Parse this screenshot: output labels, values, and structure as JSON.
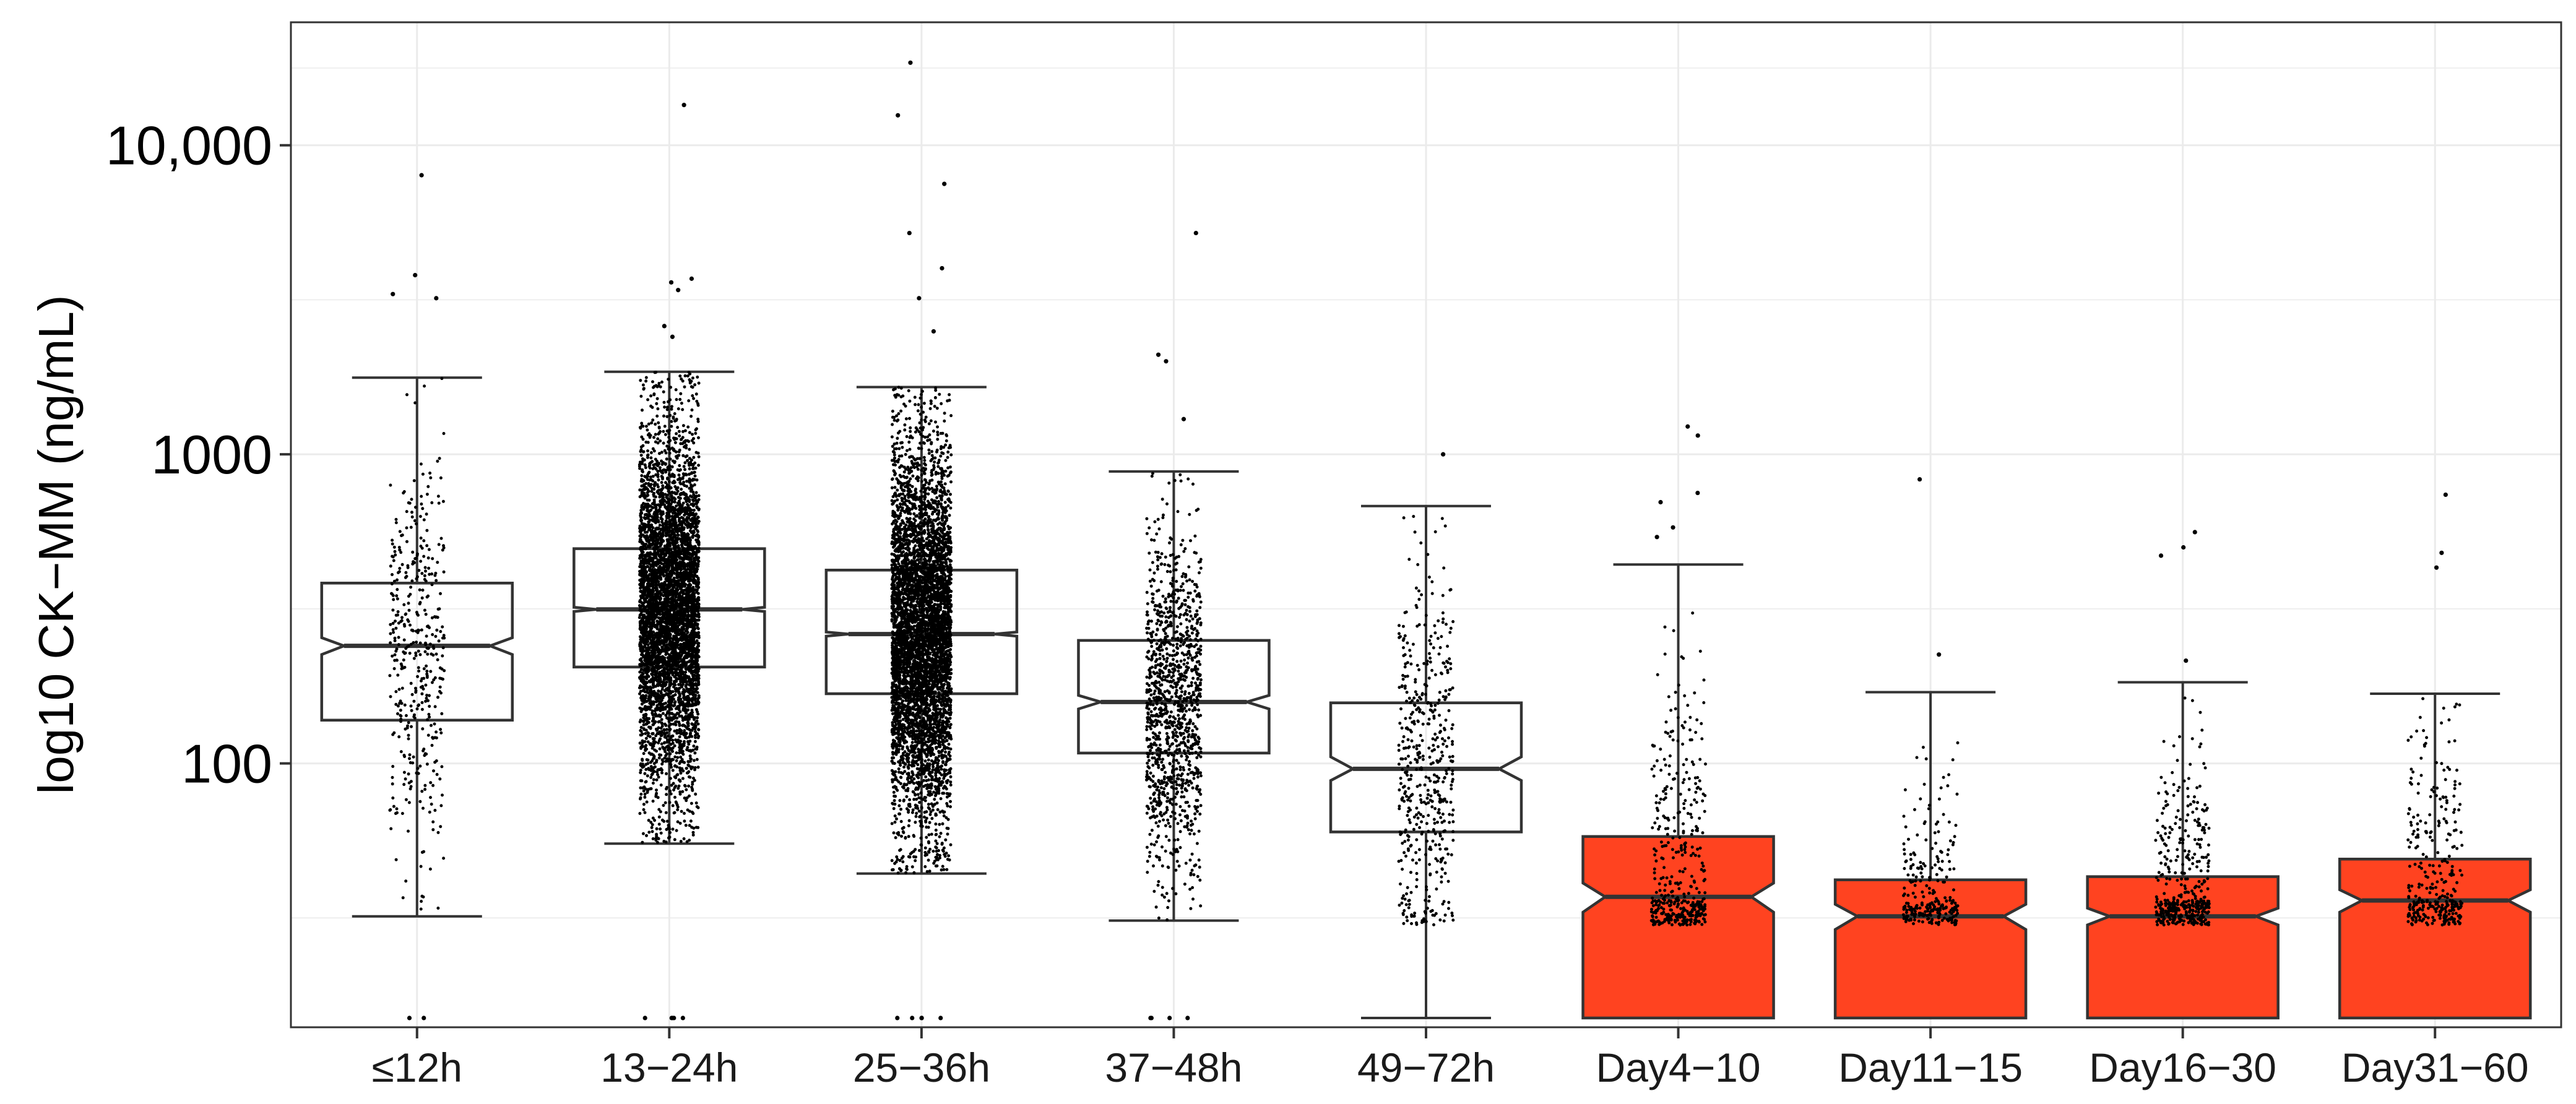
{
  "chart_data": {
    "type": "boxplot",
    "title": "",
    "xlabel": "",
    "ylabel": "log10 CK−MM (ng/mL)",
    "yscale": "log10",
    "ylim": [
      14,
      25000
    ],
    "yticks": [
      100,
      1000,
      10000
    ],
    "ytick_labels": [
      "100",
      "1000",
      "10,000"
    ],
    "grid": true,
    "categories": [
      "≤12h",
      "13−24h",
      "25−36h",
      "37−48h",
      "49−72h",
      "Day4−10",
      "Day11−15",
      "Day16−30",
      "Day31−60"
    ],
    "boxes": [
      {
        "whisker_low": 32,
        "q1": 138,
        "median": 240,
        "q3": 383,
        "whisker_high": 1770,
        "notch_low": 225,
        "notch_high": 255,
        "jitter_count": 420,
        "outliers": [
          3200,
          3300,
          3800,
          8000,
          15,
          15
        ]
      },
      {
        "whisker_low": 55,
        "q1": 205,
        "median": 315,
        "q3": 495,
        "whisker_high": 1850,
        "notch_low": 310,
        "notch_high": 320,
        "jitter_count": 5000,
        "outliers": [
          13500,
          3700,
          3600,
          3400,
          2600,
          2400,
          15,
          15,
          15,
          15,
          15
        ]
      },
      {
        "whisker_low": 44,
        "q1": 168,
        "median": 262,
        "q3": 422,
        "whisker_high": 1650,
        "notch_low": 258,
        "notch_high": 266,
        "jitter_count": 5500,
        "outliers": [
          18500,
          12500,
          7500,
          5200,
          4000,
          3200,
          2500,
          15,
          15,
          15,
          15,
          15
        ]
      },
      {
        "whisker_low": 31,
        "q1": 108,
        "median": 158,
        "q3": 250,
        "whisker_high": 880,
        "notch_low": 150,
        "notch_high": 166,
        "jitter_count": 1200,
        "outliers": [
          5200,
          2100,
          2000,
          1300,
          15,
          15,
          15,
          15
        ]
      },
      {
        "whisker_low": 15,
        "q1": 60,
        "median": 96,
        "q3": 157,
        "whisker_high": 680,
        "notch_low": 88,
        "notch_high": 105,
        "jitter_count": 500,
        "outliers": [
          1000
        ]
      },
      {
        "whisker_low": 15,
        "q1": 15,
        "median": 37,
        "q3": 58,
        "whisker_high": 440,
        "notch_low": 33,
        "notch_high": 41,
        "jitter_count": 420,
        "outliers": [
          1230,
          1150,
          750,
          700,
          580,
          540
        ]
      },
      {
        "whisker_low": 15,
        "q1": 15,
        "median": 32,
        "q3": 42,
        "whisker_high": 170,
        "notch_low": 29,
        "notch_high": 35,
        "jitter_count": 260,
        "outliers": [
          830,
          225
        ]
      },
      {
        "whisker_low": 15,
        "q1": 15,
        "median": 32,
        "q3": 43,
        "whisker_high": 183,
        "notch_low": 30,
        "notch_high": 34,
        "jitter_count": 420,
        "outliers": [
          560,
          500,
          470,
          215
        ]
      },
      {
        "whisker_low": 15,
        "q1": 15,
        "median": 36,
        "q3": 49,
        "whisker_high": 168,
        "notch_low": 33,
        "notch_high": 39,
        "jitter_count": 330,
        "outliers": [
          740,
          480,
          430
        ]
      }
    ],
    "fill_colors": [
      "#ffffff",
      "#ffffff",
      "#ffffff",
      "#ffffff",
      "#ffffff",
      "#ff4320",
      "#ff4320",
      "#ff4320",
      "#ff4320"
    ],
    "box_stroke": "#333333",
    "point_color": "#000000",
    "grid_color": "#ebebeb",
    "panel_border": "#333333"
  }
}
